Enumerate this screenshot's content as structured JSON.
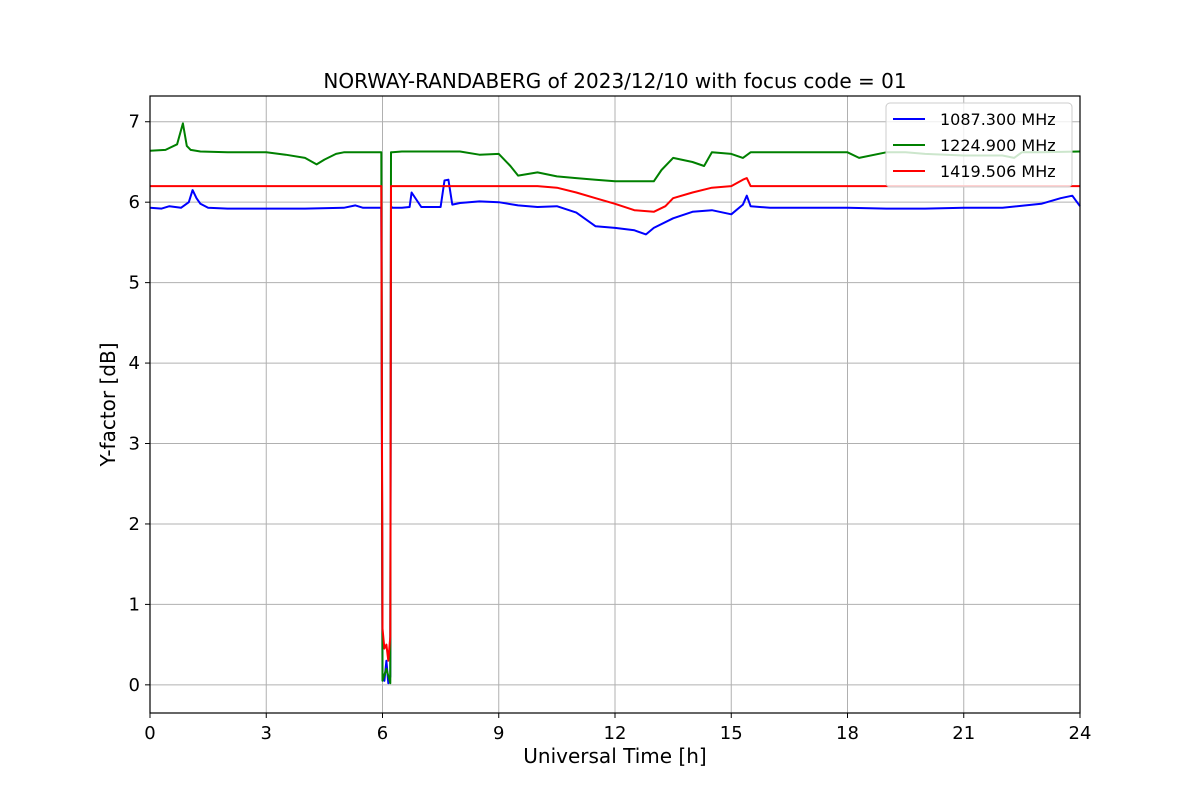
{
  "chart_data": {
    "type": "line",
    "title": "NORWAY-RANDABERG of 2023/12/10 with focus code = 01",
    "xlabel": "Universal Time [h]",
    "ylabel": "Y-factor [dB]",
    "xlim": [
      0,
      24
    ],
    "ylim": [
      -0.35,
      7.32
    ],
    "xticks": [
      "0",
      "3",
      "6",
      "9",
      "12",
      "15",
      "18",
      "21",
      "24"
    ],
    "yticks": [
      "0",
      "1",
      "2",
      "3",
      "4",
      "5",
      "6",
      "7"
    ],
    "grid": true,
    "legend_position": "top-right",
    "series": [
      {
        "name": "1087.300 MHz",
        "color": "#0000ff",
        "x": [
          0,
          0.3,
          0.5,
          0.8,
          1.0,
          1.1,
          1.2,
          1.3,
          1.5,
          2.0,
          3.0,
          4.0,
          5.0,
          5.3,
          5.5,
          5.9,
          5.97,
          6.0,
          6.05,
          6.1,
          6.15,
          6.2,
          6.22,
          6.25,
          6.3,
          6.5,
          6.7,
          6.75,
          7.0,
          7.5,
          7.6,
          7.7,
          7.8,
          8.0,
          8.5,
          9.0,
          9.5,
          10.0,
          10.5,
          11.0,
          11.5,
          12.0,
          12.5,
          12.8,
          13.0,
          13.5,
          14.0,
          14.5,
          15.0,
          15.3,
          15.4,
          15.5,
          16.0,
          17.0,
          18.0,
          19.0,
          20.0,
          21.0,
          22.0,
          23.0,
          23.5,
          23.8,
          24.0
        ],
        "y": [
          5.93,
          5.92,
          5.95,
          5.93,
          6.0,
          6.15,
          6.05,
          5.98,
          5.93,
          5.92,
          5.92,
          5.92,
          5.93,
          5.96,
          5.93,
          5.93,
          5.93,
          0.15,
          0.05,
          0.3,
          0.02,
          0.1,
          5.95,
          5.93,
          5.93,
          5.93,
          5.94,
          6.12,
          5.94,
          5.94,
          6.27,
          6.28,
          5.97,
          5.99,
          6.01,
          6.0,
          5.96,
          5.94,
          5.95,
          5.87,
          5.7,
          5.68,
          5.65,
          5.6,
          5.68,
          5.8,
          5.88,
          5.9,
          5.85,
          5.97,
          6.08,
          5.95,
          5.93,
          5.93,
          5.93,
          5.92,
          5.92,
          5.93,
          5.93,
          5.98,
          6.05,
          6.08,
          5.95
        ]
      },
      {
        "name": "1224.900 MHz",
        "color": "#008000",
        "x": [
          0,
          0.4,
          0.7,
          0.85,
          0.95,
          1.05,
          1.3,
          2.0,
          3.0,
          3.5,
          4.0,
          4.3,
          4.5,
          4.8,
          5.0,
          5.5,
          5.97,
          6.0,
          6.1,
          6.2,
          6.22,
          6.25,
          6.5,
          7.0,
          8.0,
          8.5,
          9.0,
          9.3,
          9.5,
          10.0,
          10.5,
          11.0,
          11.5,
          12.0,
          12.5,
          13.0,
          13.2,
          13.5,
          14.0,
          14.3,
          14.5,
          15.0,
          15.3,
          15.5,
          16.0,
          17.0,
          18.0,
          18.3,
          19.0,
          19.5,
          20.0,
          21.0,
          22.0,
          22.3,
          22.5,
          23.0,
          24.0
        ],
        "y": [
          6.64,
          6.65,
          6.72,
          6.98,
          6.7,
          6.65,
          6.63,
          6.62,
          6.62,
          6.59,
          6.55,
          6.47,
          6.53,
          6.6,
          6.62,
          6.62,
          6.62,
          0.05,
          0.2,
          0.02,
          6.62,
          6.62,
          6.63,
          6.63,
          6.63,
          6.59,
          6.6,
          6.45,
          6.33,
          6.37,
          6.32,
          6.3,
          6.28,
          6.26,
          6.26,
          6.26,
          6.4,
          6.55,
          6.5,
          6.45,
          6.62,
          6.6,
          6.55,
          6.62,
          6.62,
          6.62,
          6.62,
          6.55,
          6.62,
          6.62,
          6.6,
          6.58,
          6.58,
          6.55,
          6.62,
          6.62,
          6.63
        ]
      },
      {
        "name": "1419.506 MHz",
        "color": "#ff0000",
        "x": [
          0,
          3.0,
          5.9,
          5.97,
          6.0,
          6.05,
          6.1,
          6.15,
          6.2,
          6.22,
          6.25,
          7.0,
          8.0,
          9.0,
          10.0,
          10.5,
          11.0,
          11.5,
          12.0,
          12.5,
          13.0,
          13.3,
          13.5,
          14.0,
          14.5,
          15.0,
          15.3,
          15.4,
          15.5,
          16.0,
          17.0,
          18.0,
          21.0,
          24.0
        ],
        "y": [
          6.2,
          6.2,
          6.2,
          6.2,
          0.7,
          0.45,
          0.5,
          0.3,
          0.6,
          6.2,
          6.2,
          6.2,
          6.2,
          6.2,
          6.2,
          6.18,
          6.12,
          6.05,
          5.98,
          5.9,
          5.88,
          5.95,
          6.05,
          6.12,
          6.18,
          6.2,
          6.28,
          6.3,
          6.2,
          6.2,
          6.2,
          6.2,
          6.2,
          6.2
        ]
      }
    ]
  }
}
